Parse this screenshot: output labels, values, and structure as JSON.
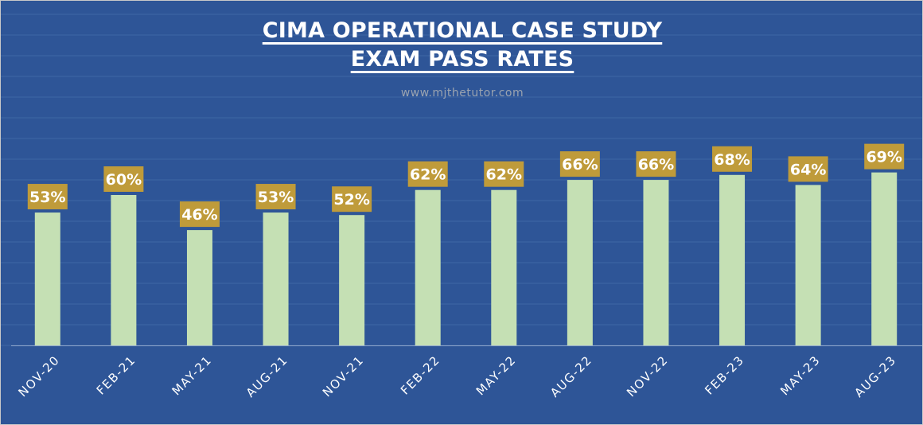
{
  "chart_data": {
    "type": "bar",
    "title_line1": "CIMA OPERATIONAL CASE STUDY",
    "title_line2": "EXAM PASS RATES",
    "subtitle": "www.mjthetutor.com",
    "xlabel": "",
    "ylabel": "",
    "ylim": [
      0,
      100
    ],
    "grid": true,
    "categories": [
      "NOV-20",
      "FEB-21",
      "MAY-21",
      "AUG-21",
      "NOV-21",
      "FEB-22",
      "MAY-22",
      "AUG-22",
      "NOV-22",
      "FEB-23",
      "MAY-23",
      "AUG-23"
    ],
    "values": [
      53,
      60,
      46,
      53,
      52,
      62,
      62,
      66,
      66,
      68,
      64,
      69
    ],
    "data_labels": [
      "53%",
      "60%",
      "46%",
      "53%",
      "52%",
      "62%",
      "62%",
      "66%",
      "66%",
      "68%",
      "64%",
      "69%"
    ]
  },
  "colors": {
    "background": "#2e5597",
    "bar": "#c5e0b4",
    "label_box": "#bf9b3a",
    "gridline": "#3f66a6",
    "axis": "#8fa6cc"
  }
}
